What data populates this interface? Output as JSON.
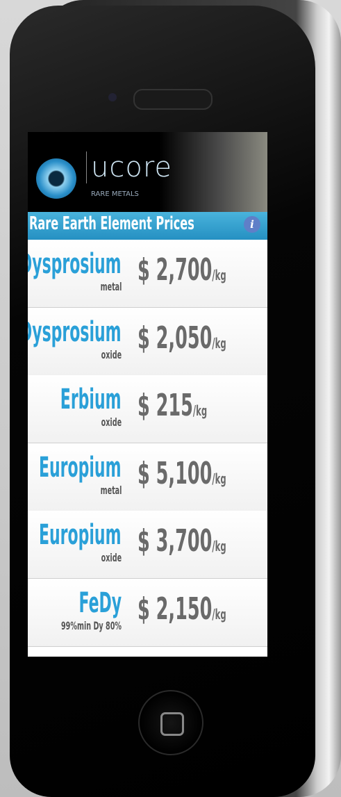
{
  "header": {
    "brand": "ucore",
    "tagline": "RARE METALS"
  },
  "title_bar": {
    "title": "Rare Earth Element Prices",
    "info": "i"
  },
  "prices": [
    {
      "name": "Dysprosium",
      "form": "metal",
      "price": "$ 2,700",
      "unit": "/kg"
    },
    {
      "name": "Dysprosium",
      "form": "oxide",
      "price": "$ 2,050",
      "unit": "/kg"
    },
    {
      "name": "Erbium",
      "form": "oxide",
      "price": "$ 215",
      "unit": "/kg"
    },
    {
      "name": "Europium",
      "form": "metal",
      "price": "$ 5,100",
      "unit": "/kg"
    },
    {
      "name": "Europium",
      "form": "oxide",
      "price": "$ 3,700",
      "unit": "/kg"
    },
    {
      "name": "FeDy",
      "form": "99%min Dy 80%",
      "price": "$ 2,150",
      "unit": "/kg"
    }
  ]
}
